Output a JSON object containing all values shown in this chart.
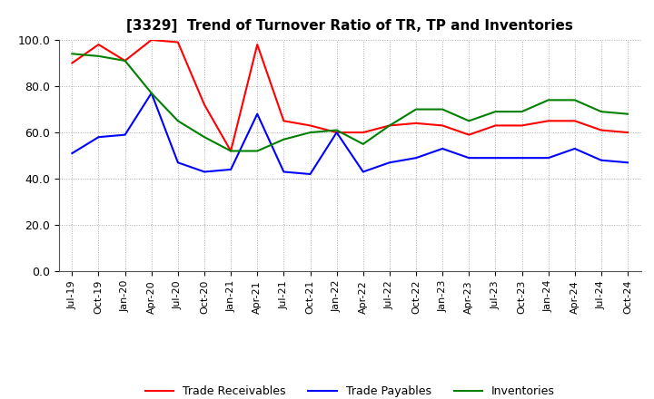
{
  "title": "[3329]  Trend of Turnover Ratio of TR, TP and Inventories",
  "ylim": [
    0,
    100
  ],
  "yticks": [
    0.0,
    20.0,
    40.0,
    60.0,
    80.0,
    100.0
  ],
  "labels": [
    "Trade Receivables",
    "Trade Payables",
    "Inventories"
  ],
  "colors": [
    "#ff0000",
    "#0000ff",
    "#008000"
  ],
  "x_labels": [
    "Jul-19",
    "Oct-19",
    "Jan-20",
    "Apr-20",
    "Jul-20",
    "Oct-20",
    "Jan-21",
    "Apr-21",
    "Jul-21",
    "Oct-21",
    "Jan-22",
    "Apr-22",
    "Jul-22",
    "Oct-22",
    "Jan-23",
    "Apr-23",
    "Jul-23",
    "Oct-23",
    "Jan-24",
    "Apr-24",
    "Jul-24",
    "Oct-24"
  ],
  "trade_receivables": [
    90,
    98,
    91,
    100,
    99,
    72,
    52,
    98,
    65,
    63,
    60,
    60,
    63,
    64,
    63,
    59,
    63,
    63,
    65,
    65,
    61,
    60
  ],
  "trade_payables": [
    51,
    58,
    59,
    77,
    47,
    43,
    44,
    68,
    43,
    42,
    60,
    43,
    47,
    49,
    53,
    49,
    49,
    49,
    49,
    53,
    48,
    47
  ],
  "inventories": [
    94,
    93,
    91,
    77,
    65,
    58,
    52,
    52,
    57,
    60,
    61,
    55,
    63,
    70,
    70,
    65,
    69,
    69,
    74,
    74,
    69,
    68
  ],
  "line_width": 1.5,
  "background_color": "#ffffff",
  "grid_color": "#aaaaaa"
}
